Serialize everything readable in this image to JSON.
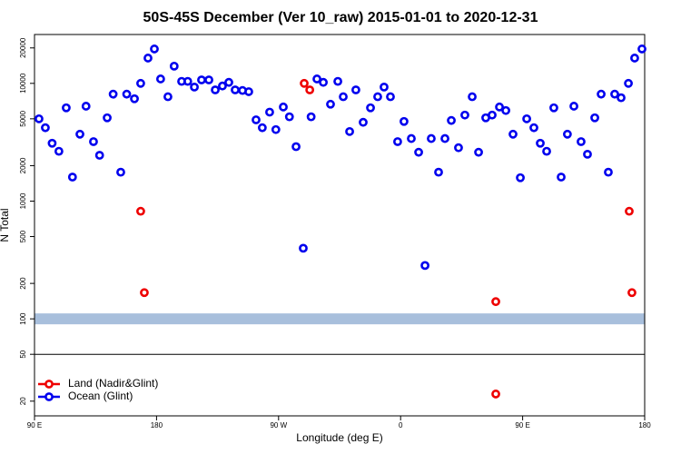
{
  "chart_data": {
    "type": "scatter",
    "title": "50S-45S December (Ver 10_raw)   2015-01-01 to 2020-12-31",
    "x_label": "Longitude (deg E)",
    "y_label": "N Total",
    "log_y": true,
    "legend": "lower left",
    "band": {
      "value": 100,
      "color": "#a8bfdc"
    },
    "hline": 50,
    "xlim": [
      90,
      540
    ],
    "ylim": [
      15,
      26000
    ],
    "xticks": [
      {
        "value": 90,
        "label": "90 E"
      },
      180,
      {
        "value": 270,
        "label": "90 W"
      },
      {
        "value": 360,
        "label": "0"
      },
      {
        "value": 450,
        "label": "90 E"
      },
      {
        "value": 540,
        "label": "180"
      }
    ],
    "yticks": [
      20,
      50,
      100,
      200,
      500,
      1000,
      2000,
      5000,
      10000,
      20000
    ],
    "series": [
      {
        "name": "Land (Nadir&Glint)",
        "color": "#ee0000",
        "x": [
          168.3,
          171,
          288.9,
          293,
          430.2,
          430.2,
          528.6,
          530.6
        ],
        "values": [
          820,
          167,
          10000,
          8800,
          140,
          23,
          820,
          167
        ]
      },
      {
        "name": "Ocean (Glint)",
        "color": "#0000ee",
        "x": [
          93.3,
          98,
          103,
          108,
          113.4,
          118,
          123.5,
          128,
          133.5,
          138,
          143.6,
          148,
          153.6,
          158,
          163.7,
          168.3,
          173.7,
          178.4,
          183,
          188.4,
          193,
          198.5,
          203,
          207.9,
          213.2,
          218.6,
          223.3,
          228.6,
          233.3,
          238,
          243.4,
          248,
          253.4,
          258,
          263.4,
          268,
          273.5,
          278,
          282.9,
          288.2,
          294,
          298.3,
          303,
          308.3,
          313.7,
          317.7,
          322.4,
          327,
          332.4,
          337.8,
          343.1,
          347.8,
          352.5,
          357.8,
          362.5,
          367.9,
          373.3,
          378,
          382.6,
          388,
          392.7,
          397.4,
          402.7,
          407.4,
          412.8,
          417.5,
          422.8,
          427.5,
          432.9,
          437.6,
          442.9,
          448.3,
          453,
          458.3,
          463,
          467.7,
          473,
          478.4,
          483,
          487.8,
          493.1,
          497.8,
          503.2,
          507.9,
          513.2,
          517.9,
          522.6,
          528,
          532.6,
          538
        ],
        "values": [
          5000,
          4200,
          3100,
          2650,
          6200,
          1600,
          3700,
          6400,
          3200,
          2450,
          5100,
          8100,
          1760,
          8100,
          7400,
          10000,
          16400,
          19600,
          10900,
          7700,
          14000,
          10400,
          10400,
          9300,
          10700,
          10700,
          8800,
          9500,
          10200,
          8800,
          8700,
          8500,
          4900,
          4200,
          5700,
          4050,
          6300,
          5200,
          2900,
          398,
          5200,
          10900,
          10200,
          6650,
          10400,
          7700,
          3900,
          8800,
          4670,
          6200,
          7700,
          9300,
          7700,
          3200,
          4750,
          3400,
          2600,
          284,
          3400,
          1760,
          3400,
          4840,
          2840,
          5380,
          7700,
          2600,
          5100,
          5380,
          6300,
          5880,
          3700,
          1580,
          5000,
          4200,
          3100,
          2650,
          6200,
          1600,
          3700,
          6400,
          3200,
          2500,
          5100,
          8100,
          1760,
          8100,
          7550,
          10000,
          16400,
          19600
        ]
      }
    ]
  }
}
